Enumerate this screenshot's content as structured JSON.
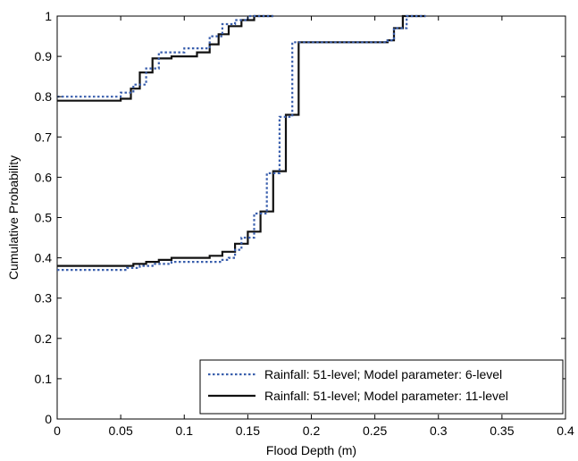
{
  "chart_data": {
    "type": "line",
    "step": true,
    "title": "",
    "xlabel": "Flood Depth (m)",
    "ylabel": "Cumulative Probability",
    "xlim": [
      0,
      0.4
    ],
    "ylim": [
      0,
      1
    ],
    "xticks": [
      0,
      0.05,
      0.1,
      0.15,
      0.2,
      0.25,
      0.3,
      0.35,
      0.4
    ],
    "xtick_labels": [
      "0",
      "0.05",
      "0.1",
      "0.15",
      "0.2",
      "0.25",
      "0.3",
      "0.35",
      "0.4"
    ],
    "yticks": [
      0,
      0.1,
      0.2,
      0.3,
      0.4,
      0.5,
      0.6,
      0.7,
      0.8,
      0.9,
      1
    ],
    "ytick_labels": [
      "0",
      "0.1",
      "0.2",
      "0.3",
      "0.4",
      "0.5",
      "0.6",
      "0.7",
      "0.8",
      "0.9",
      "1"
    ],
    "grid": false,
    "legend_position": "bottom-right",
    "series": [
      {
        "name": "Rainfall: 51-level; Model parameter: 6-level",
        "style": "dotted",
        "color": "#3a5fad",
        "curves": [
          [
            [
              0,
              0.8
            ],
            [
              0.05,
              0.8
            ],
            [
              0.05,
              0.81
            ],
            [
              0.06,
              0.81
            ],
            [
              0.06,
              0.83
            ],
            [
              0.07,
              0.83
            ],
            [
              0.07,
              0.87
            ],
            [
              0.08,
              0.87
            ],
            [
              0.08,
              0.91
            ],
            [
              0.1,
              0.91
            ],
            [
              0.1,
              0.92
            ],
            [
              0.12,
              0.92
            ],
            [
              0.12,
              0.95
            ],
            [
              0.13,
              0.95
            ],
            [
              0.13,
              0.98
            ],
            [
              0.14,
              0.98
            ],
            [
              0.14,
              0.99
            ],
            [
              0.15,
              0.99
            ],
            [
              0.15,
              1
            ],
            [
              0.17,
              1
            ]
          ],
          [
            [
              0,
              0.37
            ],
            [
              0.055,
              0.37
            ],
            [
              0.055,
              0.375
            ],
            [
              0.065,
              0.375
            ],
            [
              0.065,
              0.38
            ],
            [
              0.075,
              0.38
            ],
            [
              0.075,
              0.385
            ],
            [
              0.09,
              0.385
            ],
            [
              0.09,
              0.39
            ],
            [
              0.13,
              0.39
            ],
            [
              0.13,
              0.395
            ],
            [
              0.135,
              0.395
            ],
            [
              0.135,
              0.4
            ],
            [
              0.14,
              0.4
            ],
            [
              0.14,
              0.42
            ],
            [
              0.145,
              0.42
            ],
            [
              0.145,
              0.45
            ],
            [
              0.155,
              0.45
            ],
            [
              0.155,
              0.51
            ],
            [
              0.165,
              0.51
            ],
            [
              0.165,
              0.61
            ],
            [
              0.175,
              0.61
            ],
            [
              0.175,
              0.75
            ],
            [
              0.185,
              0.75
            ],
            [
              0.185,
              0.935
            ],
            [
              0.26,
              0.935
            ],
            [
              0.26,
              0.94
            ],
            [
              0.265,
              0.94
            ],
            [
              0.265,
              0.97
            ],
            [
              0.275,
              0.97
            ],
            [
              0.275,
              1
            ],
            [
              0.29,
              1
            ]
          ]
        ]
      },
      {
        "name": "Rainfall: 51-level; Model parameter: 11-level",
        "style": "solid",
        "color": "#111111",
        "curves": [
          [
            [
              0,
              0.79
            ],
            [
              0.05,
              0.79
            ],
            [
              0.05,
              0.795
            ],
            [
              0.058,
              0.795
            ],
            [
              0.058,
              0.82
            ],
            [
              0.065,
              0.82
            ],
            [
              0.065,
              0.86
            ],
            [
              0.075,
              0.86
            ],
            [
              0.075,
              0.895
            ],
            [
              0.09,
              0.895
            ],
            [
              0.09,
              0.9
            ],
            [
              0.11,
              0.9
            ],
            [
              0.11,
              0.91
            ],
            [
              0.12,
              0.91
            ],
            [
              0.12,
              0.93
            ],
            [
              0.127,
              0.93
            ],
            [
              0.127,
              0.955
            ],
            [
              0.135,
              0.955
            ],
            [
              0.135,
              0.975
            ],
            [
              0.145,
              0.975
            ],
            [
              0.145,
              0.99
            ],
            [
              0.155,
              0.99
            ],
            [
              0.155,
              1
            ],
            [
              0.17,
              1
            ]
          ],
          [
            [
              0,
              0.38
            ],
            [
              0.06,
              0.38
            ],
            [
              0.06,
              0.385
            ],
            [
              0.07,
              0.385
            ],
            [
              0.07,
              0.39
            ],
            [
              0.08,
              0.39
            ],
            [
              0.08,
              0.395
            ],
            [
              0.09,
              0.395
            ],
            [
              0.09,
              0.4
            ],
            [
              0.12,
              0.4
            ],
            [
              0.12,
              0.405
            ],
            [
              0.13,
              0.405
            ],
            [
              0.13,
              0.415
            ],
            [
              0.14,
              0.415
            ],
            [
              0.14,
              0.435
            ],
            [
              0.15,
              0.435
            ],
            [
              0.15,
              0.465
            ],
            [
              0.16,
              0.465
            ],
            [
              0.16,
              0.515
            ],
            [
              0.17,
              0.515
            ],
            [
              0.17,
              0.615
            ],
            [
              0.18,
              0.615
            ],
            [
              0.18,
              0.755
            ],
            [
              0.19,
              0.755
            ],
            [
              0.19,
              0.935
            ],
            [
              0.26,
              0.935
            ],
            [
              0.26,
              0.94
            ],
            [
              0.265,
              0.94
            ],
            [
              0.265,
              0.97
            ],
            [
              0.272,
              0.97
            ],
            [
              0.272,
              1
            ],
            [
              0.29,
              1
            ]
          ]
        ]
      }
    ]
  }
}
